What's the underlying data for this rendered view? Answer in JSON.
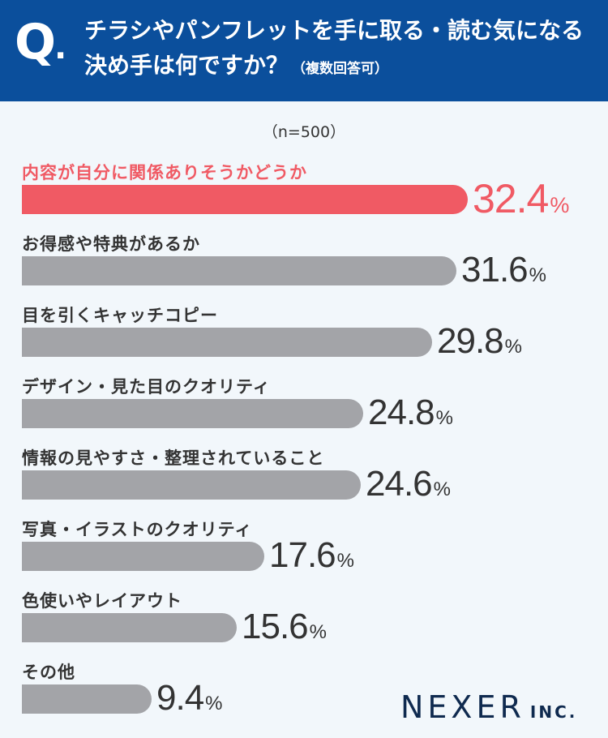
{
  "header": {
    "q_letter": "Q",
    "q_dot": ".",
    "question_line1": "チラシやパンフレットを手に取る・読む気になる",
    "question_line2": "決め手は何ですか？",
    "question_note": "（複数回答可）"
  },
  "sample_size": "（n=500）",
  "logo": {
    "name": "NEXER",
    "suffix": "INC."
  },
  "colors": {
    "header_bg": "#0b4f9c",
    "highlight": "#f05a64",
    "bar": "#a3a4a8",
    "background": "#f2f7fb"
  },
  "chart_data": {
    "type": "bar",
    "orientation": "horizontal",
    "unit": "%",
    "xlim": [
      0,
      100
    ],
    "grid": false,
    "categories": [
      "内容が自分に関係ありそうかどうか",
      "お得感や特典があるか",
      "目を引くキャッチコピー",
      "デザイン・見た目のクオリティ",
      "情報の見やすさ・整理されていること",
      "写真・イラストのクオリティ",
      "色使いやレイアウト",
      "その他"
    ],
    "values": [
      32.4,
      31.6,
      29.8,
      24.8,
      24.6,
      17.6,
      15.6,
      9.4
    ],
    "value_labels": [
      "32.4",
      "31.6",
      "29.8",
      "24.8",
      "24.6",
      "17.6",
      "15.6",
      "9.4"
    ],
    "highlight_index": 0
  }
}
